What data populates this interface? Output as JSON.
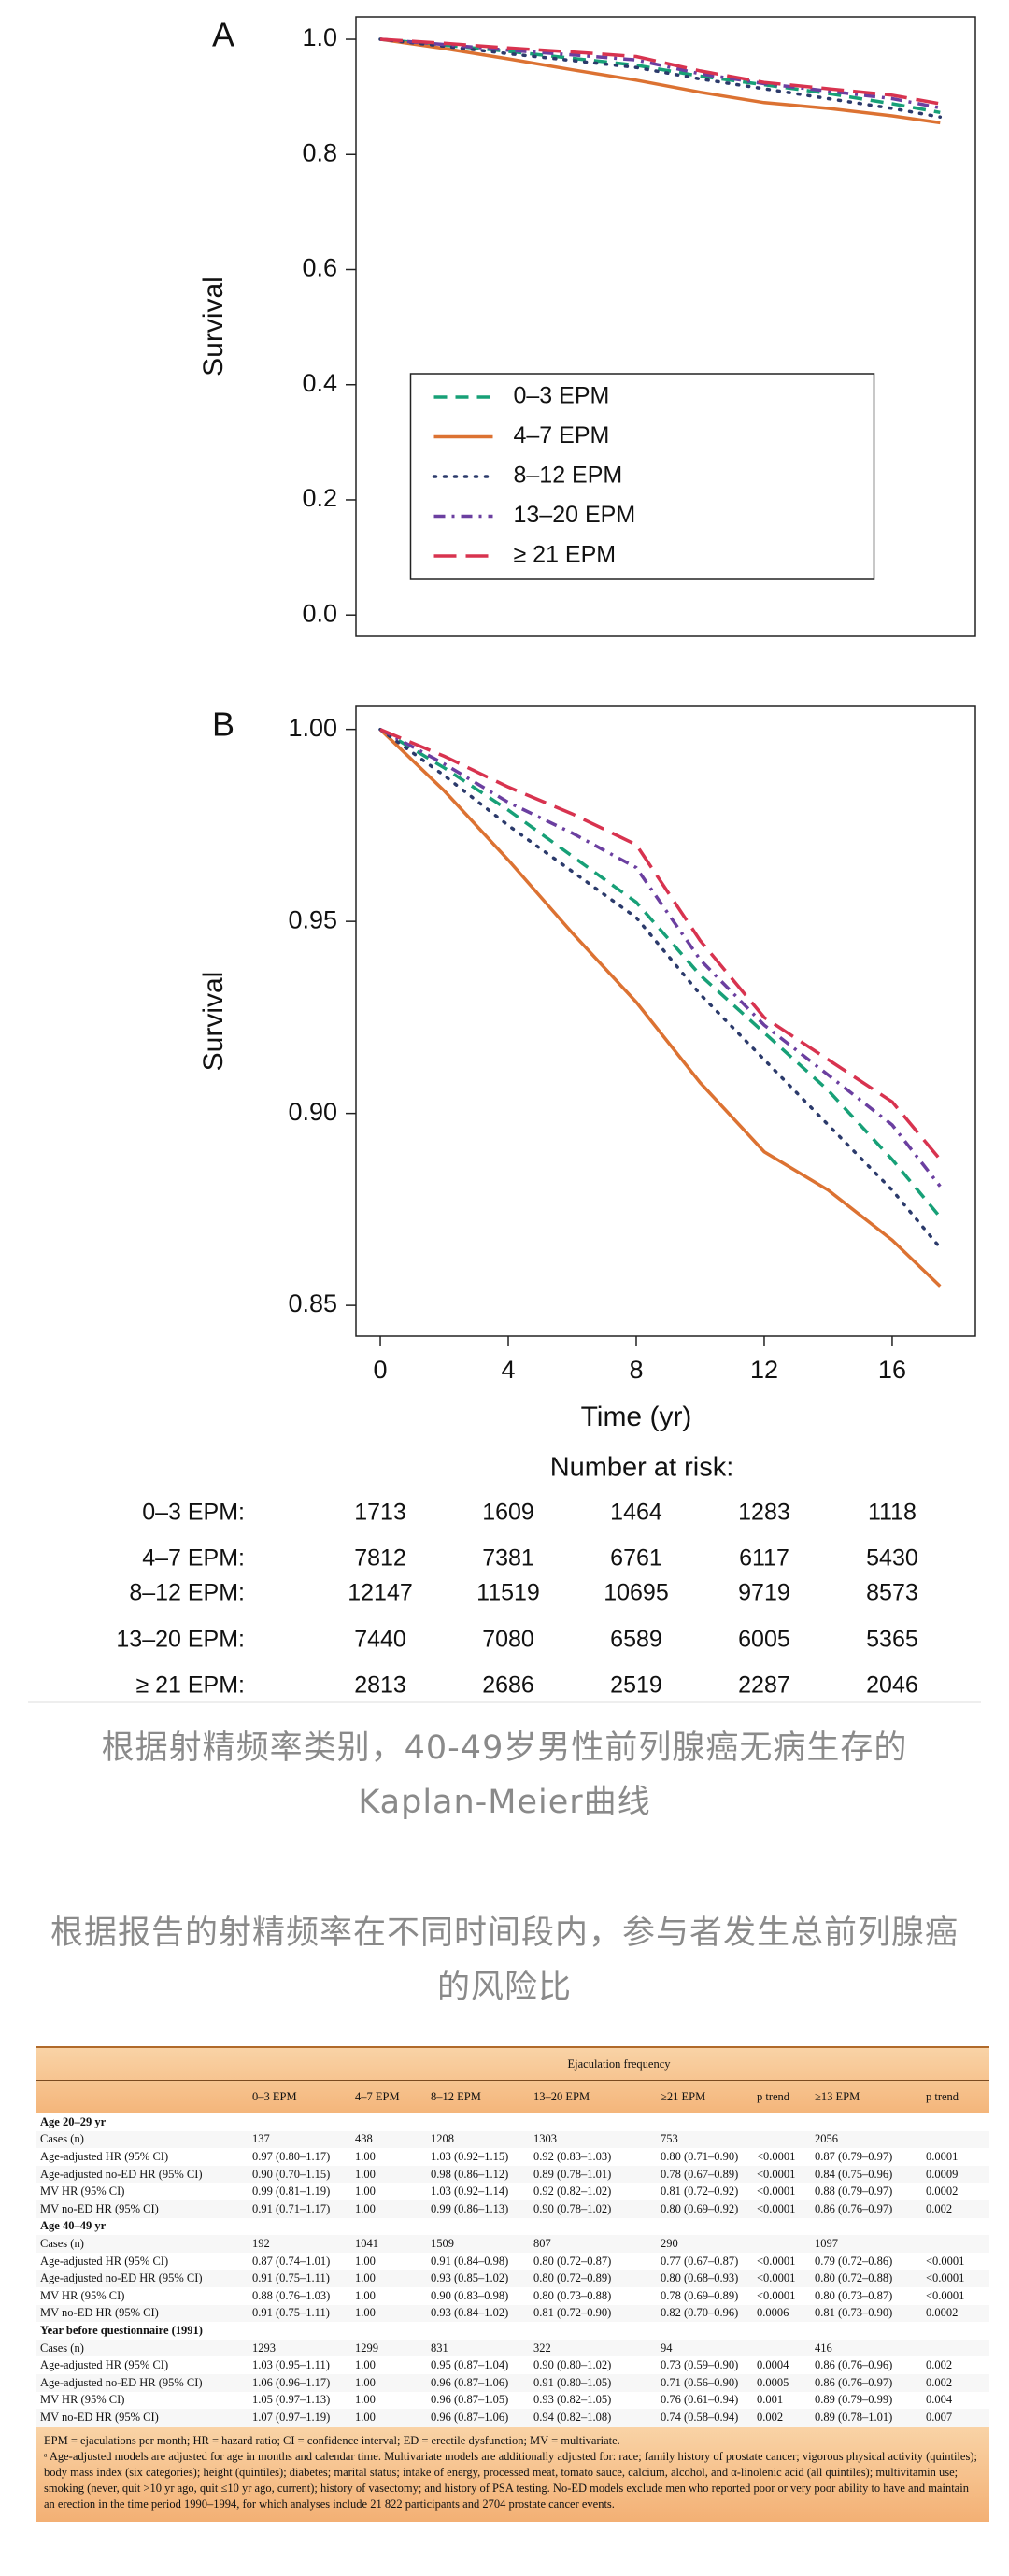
{
  "chart_data": [
    {
      "type": "line",
      "title": "A",
      "ylabel": "Survival",
      "x": [
        0,
        2,
        4,
        6,
        8,
        10,
        12,
        14,
        16,
        17.5
      ],
      "xlim": [
        -0.76,
        18.6
      ],
      "ylim": [
        -0.037,
        1.039
      ],
      "yticks": [
        {
          "value": 0,
          "label": "0.0"
        },
        {
          "value": 0.2,
          "label": "0.2"
        },
        {
          "value": 0.4,
          "label": "0.4"
        },
        {
          "value": 0.6,
          "label": "0.6"
        },
        {
          "value": 0.8,
          "label": "0.8"
        },
        {
          "value": 1,
          "label": "1.0"
        }
      ],
      "legend": "lower center",
      "series": [
        {
          "name": "0–3 EPM",
          "color": "#17a077",
          "dash": "dashed",
          "values": [
            1,
            0.99,
            0.979,
            0.967,
            0.955,
            0.936,
            0.921,
            0.906,
            0.888,
            0.873
          ]
        },
        {
          "name": "4–7 EPM",
          "color": "#dc7232",
          "dash": "solid",
          "values": [
            1,
            0.984,
            0.966,
            0.947,
            0.929,
            0.908,
            0.89,
            0.88,
            0.867,
            0.855
          ]
        },
        {
          "name": "8–12 EPM",
          "color": "#2b3a6b",
          "dash": "dotted",
          "values": [
            1,
            0.988,
            0.975,
            0.963,
            0.951,
            0.931,
            0.914,
            0.897,
            0.88,
            0.865
          ]
        },
        {
          "name": "13–20 EPM",
          "color": "#6b3fa0",
          "dash": "dashdot",
          "values": [
            1,
            0.991,
            0.981,
            0.973,
            0.964,
            0.94,
            0.923,
            0.91,
            0.897,
            0.881
          ]
        },
        {
          "name": "≥ 21 EPM",
          "color": "#d8334f",
          "dash": "longdash",
          "values": [
            1,
            0.993,
            0.985,
            0.978,
            0.97,
            0.945,
            0.925,
            0.914,
            0.903,
            0.888
          ]
        }
      ]
    },
    {
      "type": "line",
      "title": "B",
      "ylabel": "Survival",
      "xlabel": "Time (yr)",
      "x": [
        0,
        2,
        4,
        6,
        8,
        10,
        12,
        14,
        16,
        17.5
      ],
      "xlim": [
        -0.76,
        18.6
      ],
      "ylim": [
        0.842,
        1.006
      ],
      "xticks": [
        0,
        4,
        8,
        12,
        16
      ],
      "yticks": [
        {
          "value": 0.85,
          "label": "0.85"
        },
        {
          "value": 0.9,
          "label": "0.90"
        },
        {
          "value": 0.95,
          "label": "0.95"
        },
        {
          "value": 1,
          "label": "1.00"
        }
      ],
      "series": [
        {
          "color": "#17a077",
          "dash": "dashed",
          "values": [
            1,
            0.99,
            0.979,
            0.967,
            0.955,
            0.936,
            0.921,
            0.906,
            0.888,
            0.873
          ]
        },
        {
          "color": "#dc7232",
          "dash": "solid",
          "values": [
            1,
            0.984,
            0.966,
            0.947,
            0.929,
            0.908,
            0.89,
            0.88,
            0.867,
            0.855
          ]
        },
        {
          "color": "#2b3a6b",
          "dash": "dotted",
          "values": [
            1,
            0.988,
            0.975,
            0.963,
            0.951,
            0.931,
            0.914,
            0.897,
            0.88,
            0.865
          ]
        },
        {
          "color": "#6b3fa0",
          "dash": "dashdot",
          "values": [
            1,
            0.991,
            0.981,
            0.973,
            0.964,
            0.94,
            0.923,
            0.91,
            0.897,
            0.881
          ]
        },
        {
          "color": "#d8334f",
          "dash": "longdash",
          "values": [
            1,
            0.993,
            0.985,
            0.978,
            0.97,
            0.945,
            0.925,
            0.914,
            0.903,
            0.888
          ]
        }
      ]
    }
  ],
  "risk_table": {
    "title": "Number at risk:",
    "rows": [
      {
        "label": "0–3 EPM:",
        "values": [
          1713,
          1609,
          1464,
          1283,
          1118
        ]
      },
      {
        "label": "4–7 EPM:",
        "values": [
          7812,
          7381,
          6761,
          6117,
          5430
        ]
      },
      {
        "label": "8–12 EPM:",
        "values": [
          12147,
          11519,
          10695,
          9719,
          8573
        ]
      },
      {
        "label": "13–20 EPM:",
        "values": [
          7440,
          7080,
          6589,
          6005,
          5365
        ]
      },
      {
        "label": "≥ 21 EPM:",
        "values": [
          2813,
          2686,
          2519,
          2287,
          2046
        ]
      }
    ]
  },
  "captions": [
    "根据射精频率类别，40-49岁男性前列腺癌无病生存的Kaplan-Meier曲线",
    "根据报告的射精频率在不同时间段内，参与者发生总前列腺癌的风险比"
  ],
  "hr_table": {
    "group_header": "Ejaculation frequency",
    "columns": [
      "0–3 EPM",
      "4–7 EPM",
      "8–12 EPM",
      "13–20 EPM",
      "≥21 EPM",
      "p trend",
      "≥13 EPM",
      "p trend"
    ],
    "sections": [
      {
        "title": "Age 20–29 yr",
        "rows": [
          {
            "label": "Cases (n)",
            "cells": [
              "137",
              "438",
              "1208",
              "1303",
              "753",
              null,
              "2056",
              null
            ]
          },
          {
            "label": "Age-adjusted HR (95% CI)",
            "cells": [
              "0.97 (0.80–1.17)",
              "1.00",
              "1.03 (0.92–1.15)",
              "0.92 (0.83–1.03)",
              "0.80 (0.71–0.90)",
              "<0.0001",
              "0.87 (0.79–0.97)",
              "0.0001"
            ]
          },
          {
            "label": "Age-adjusted no-ED HR (95% CI)",
            "cells": [
              "0.90 (0.70–1.15)",
              "1.00",
              "0.98 (0.86–1.12)",
              "0.89 (0.78–1.01)",
              "0.78 (0.67–0.89)",
              "<0.0001",
              "0.84 (0.75–0.96)",
              "0.0009"
            ]
          },
          {
            "label": "MV HR (95% CI)",
            "cells": [
              "0.99 (0.81–1.19)",
              "1.00",
              "1.03 (0.92–1.14)",
              "0.92 (0.82–1.02)",
              "0.81 (0.72–0.92)",
              "<0.0001",
              "0.88 (0.79–0.97)",
              "0.0002"
            ]
          },
          {
            "label": "MV no-ED HR (95% CI)",
            "cells": [
              "0.91 (0.71–1.17)",
              "1.00",
              "0.99 (0.86–1.13)",
              "0.90 (0.78–1.02)",
              "0.80 (0.69–0.92)",
              "<0.0001",
              "0.86 (0.76–0.97)",
              "0.002"
            ]
          }
        ]
      },
      {
        "title": "Age 40–49 yr",
        "rows": [
          {
            "label": "Cases (n)",
            "cells": [
              "192",
              "1041",
              "1509",
              "807",
              "290",
              null,
              "1097",
              null
            ]
          },
          {
            "label": "Age-adjusted HR (95% CI)",
            "cells": [
              "0.87 (0.74–1.01)",
              "1.00",
              "0.91 (0.84–0.98)",
              "0.80 (0.72–0.87)",
              "0.77 (0.67–0.87)",
              "<0.0001",
              "0.79 (0.72–0.86)",
              "<0.0001"
            ]
          },
          {
            "label": "Age-adjusted no-ED HR (95% CI)",
            "cells": [
              "0.91 (0.75–1.11)",
              "1.00",
              "0.93 (0.85–1.02)",
              "0.80 (0.72–0.89)",
              "0.80 (0.68–0.93)",
              "<0.0001",
              "0.80 (0.72–0.88)",
              "<0.0001"
            ]
          },
          {
            "label": "MV HR (95% CI)",
            "cells": [
              "0.88 (0.76–1.03)",
              "1.00",
              "0.90 (0.83–0.98)",
              "0.80 (0.73–0.88)",
              "0.78 (0.69–0.89)",
              "<0.0001",
              "0.80 (0.73–0.87)",
              "<0.0001"
            ]
          },
          {
            "label": "MV no-ED HR (95% CI)",
            "cells": [
              "0.91 (0.75–1.11)",
              "1.00",
              "0.93 (0.84–1.02)",
              "0.81 (0.72–0.90)",
              "0.82 (0.70–0.96)",
              "0.0006",
              "0.81 (0.73–0.90)",
              "0.0002"
            ]
          }
        ]
      },
      {
        "title": "Year before questionnaire (1991)",
        "rows": [
          {
            "label": "Cases (n)",
            "cells": [
              "1293",
              "1299",
              "831",
              "322",
              "94",
              null,
              "416",
              null
            ]
          },
          {
            "label": "Age-adjusted HR (95% CI)",
            "cells": [
              "1.03 (0.95–1.11)",
              "1.00",
              "0.95 (0.87–1.04)",
              "0.90 (0.80–1.02)",
              "0.73 (0.59–0.90)",
              "0.0004",
              "0.86 (0.76–0.96)",
              "0.002"
            ]
          },
          {
            "label": "Age-adjusted no-ED HR (95% CI)",
            "cells": [
              "1.06 (0.96–1.17)",
              "1.00",
              "0.96 (0.87–1.06)",
              "0.91 (0.80–1.05)",
              "0.71 (0.56–0.90)",
              "0.0005",
              "0.86 (0.76–0.97)",
              "0.002"
            ]
          },
          {
            "label": "MV HR (95% CI)",
            "cells": [
              "1.05 (0.97–1.13)",
              "1.00",
              "0.96 (0.87–1.05)",
              "0.93 (0.82–1.05)",
              "0.76 (0.61–0.94)",
              "0.001",
              "0.89 (0.79–0.99)",
              "0.004"
            ]
          },
          {
            "label": "MV no-ED HR (95% CI)",
            "cells": [
              "1.07 (0.97–1.19)",
              "1.00",
              "0.96 (0.87–1.06)",
              "0.94 (0.82–1.08)",
              "0.74 (0.58–0.94)",
              "0.002",
              "0.89 (0.78–1.01)",
              "0.007"
            ]
          }
        ]
      }
    ],
    "footnotes": [
      "EPM = ejaculations per month; HR = hazard ratio; CI = confidence interval; ED = erectile dysfunction; MV = multivariate.",
      "ᵃ Age-adjusted models are adjusted for age in months and calendar time. Multivariate models are additionally adjusted for: race; family history of prostate cancer; vigorous physical activity (quintiles); body mass index (six categories); height (quintiles); diabetes; marital status; intake of energy, processed meat, tomato sauce, calcium, alcohol, and α-linolenic acid (all quintiles); multivitamin use; smoking (never, quit >10 yr ago, quit ≤10 yr ago, current); history of vasectomy; and history of PSA testing. No-ED models exclude men who reported poor or very poor ability to have and maintain an erection in the time period 1990–1994, for which analyses include 21 822 participants and 2704 prostate cancer events."
    ]
  }
}
